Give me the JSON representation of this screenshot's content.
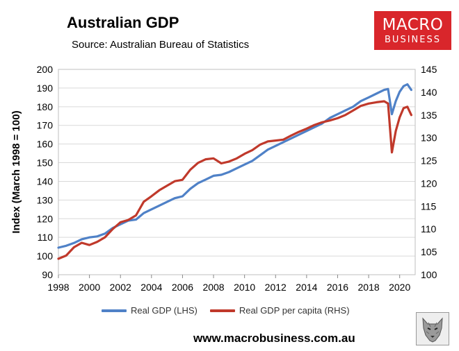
{
  "header": {
    "title": "Australian GDP",
    "source": "Source: Australian Bureau of Statistics"
  },
  "logo": {
    "line1": "MACRO",
    "line2": "BUSINESS"
  },
  "footer": {
    "website": "www.macrobusiness.com.au"
  },
  "colors": {
    "blue": "#4f81c7",
    "red": "#c0392b",
    "grid": "#d9d9d9",
    "logo": "#d9262b"
  },
  "chart_data": {
    "type": "line",
    "title": "Australian GDP",
    "ylabel": "Index (March 1998 = 100)",
    "xlabel": "",
    "xlim": [
      1998,
      2021
    ],
    "x_ticks": [
      1998,
      2000,
      2002,
      2004,
      2006,
      2008,
      2010,
      2012,
      2014,
      2016,
      2018,
      2020
    ],
    "ylim_left": [
      90,
      200
    ],
    "y_ticks_left": [
      90,
      100,
      110,
      120,
      130,
      140,
      150,
      160,
      170,
      180,
      190,
      200
    ],
    "ylim_right": [
      100,
      145
    ],
    "y_ticks_right": [
      100,
      105,
      110,
      115,
      120,
      125,
      130,
      135,
      140,
      145
    ],
    "grid": true,
    "legend": "bottom",
    "series": [
      {
        "name": "Real GDP (LHS)",
        "axis": "left",
        "color": "#4f81c7",
        "points": [
          [
            1998.0,
            104.5
          ],
          [
            1998.5,
            105.5
          ],
          [
            1999.0,
            107
          ],
          [
            1999.5,
            109
          ],
          [
            2000.0,
            110
          ],
          [
            2000.5,
            110.5
          ],
          [
            2001.0,
            112
          ],
          [
            2001.5,
            115
          ],
          [
            2002.0,
            117
          ],
          [
            2002.5,
            119
          ],
          [
            2003.0,
            119.5
          ],
          [
            2003.5,
            123
          ],
          [
            2004.0,
            125
          ],
          [
            2004.5,
            127
          ],
          [
            2005.0,
            129
          ],
          [
            2005.5,
            131
          ],
          [
            2006.0,
            132
          ],
          [
            2006.5,
            136
          ],
          [
            2007.0,
            139
          ],
          [
            2007.5,
            141
          ],
          [
            2008.0,
            143
          ],
          [
            2008.5,
            143.5
          ],
          [
            2009.0,
            145
          ],
          [
            2009.5,
            147
          ],
          [
            2010.0,
            149
          ],
          [
            2010.5,
            151
          ],
          [
            2011.0,
            154
          ],
          [
            2011.5,
            157
          ],
          [
            2012.0,
            159
          ],
          [
            2012.5,
            161
          ],
          [
            2013.0,
            163
          ],
          [
            2013.5,
            165
          ],
          [
            2014.0,
            167
          ],
          [
            2014.5,
            169
          ],
          [
            2015.0,
            171
          ],
          [
            2015.5,
            174
          ],
          [
            2016.0,
            176
          ],
          [
            2016.5,
            178
          ],
          [
            2017.0,
            180
          ],
          [
            2017.5,
            183
          ],
          [
            2018.0,
            185
          ],
          [
            2018.5,
            187
          ],
          [
            2019.0,
            189
          ],
          [
            2019.25,
            189.5
          ],
          [
            2019.5,
            176
          ],
          [
            2019.75,
            183
          ],
          [
            2020.0,
            188
          ],
          [
            2020.25,
            191
          ],
          [
            2020.5,
            192
          ],
          [
            2020.75,
            189
          ]
        ]
      },
      {
        "name": "Real GDP per capita (RHS)",
        "axis": "right",
        "color": "#c0392b",
        "points": [
          [
            1998.0,
            103.5
          ],
          [
            1998.5,
            104.2
          ],
          [
            1999.0,
            106
          ],
          [
            1999.5,
            107
          ],
          [
            2000.0,
            106.5
          ],
          [
            2000.5,
            107.2
          ],
          [
            2001.0,
            108.2
          ],
          [
            2001.5,
            110
          ],
          [
            2002.0,
            111.5
          ],
          [
            2002.5,
            112
          ],
          [
            2003.0,
            113
          ],
          [
            2003.5,
            116
          ],
          [
            2004.0,
            117.2
          ],
          [
            2004.5,
            118.5
          ],
          [
            2005.0,
            119.5
          ],
          [
            2005.5,
            120.5
          ],
          [
            2006.0,
            120.8
          ],
          [
            2006.5,
            123
          ],
          [
            2007.0,
            124.5
          ],
          [
            2007.5,
            125.3
          ],
          [
            2008.0,
            125.5
          ],
          [
            2008.5,
            124.4
          ],
          [
            2009.0,
            124.8
          ],
          [
            2009.5,
            125.5
          ],
          [
            2010.0,
            126.5
          ],
          [
            2010.5,
            127.3
          ],
          [
            2011.0,
            128.5
          ],
          [
            2011.5,
            129.2
          ],
          [
            2012.0,
            129.4
          ],
          [
            2012.5,
            129.6
          ],
          [
            2013.0,
            130.5
          ],
          [
            2013.5,
            131.3
          ],
          [
            2014.0,
            132
          ],
          [
            2014.5,
            132.8
          ],
          [
            2015.0,
            133.4
          ],
          [
            2015.5,
            133.8
          ],
          [
            2016.0,
            134.3
          ],
          [
            2016.5,
            135
          ],
          [
            2017.0,
            136
          ],
          [
            2017.5,
            137
          ],
          [
            2018.0,
            137.5
          ],
          [
            2018.5,
            137.8
          ],
          [
            2019.0,
            138
          ],
          [
            2019.25,
            137.5
          ],
          [
            2019.5,
            126.8
          ],
          [
            2019.75,
            131.5
          ],
          [
            2020.0,
            134.5
          ],
          [
            2020.25,
            136.5
          ],
          [
            2020.5,
            136.8
          ],
          [
            2020.75,
            135
          ]
        ]
      }
    ]
  }
}
